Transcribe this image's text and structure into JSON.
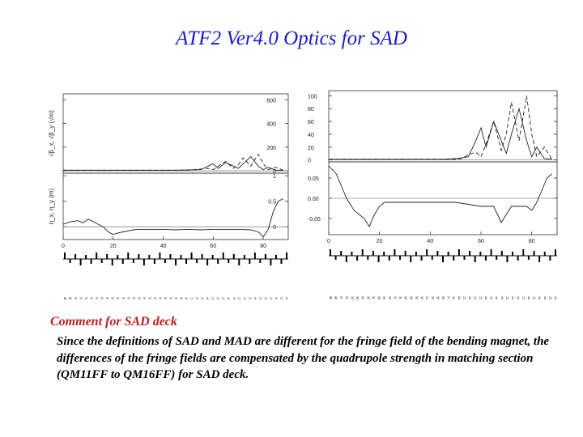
{
  "slide": {
    "title": "ATF2 Ver4.0 Optics for SAD",
    "comment_heading": "Comment for SAD deck",
    "comment_body": "Since the definitions of SAD and MAD are different for the fringe field of the bending magnet, the differences of the fringe fields are compensated by the quadrupole strength in matching section (QM11FF to QM16FF) for SAD deck."
  },
  "colors": {
    "title": "#1a1acc",
    "heading": "#c02020"
  },
  "chart_data": [
    {
      "type": "line",
      "panels": [
        {
          "ylabel": "√β_x, √β_y (√m)",
          "yticks": [
            "0",
            "200",
            "400",
            "600"
          ],
          "ylim": [
            -20,
            650
          ],
          "series": [
            {
              "x": [
                0,
                10,
                20,
                30,
                40,
                45,
                50,
                55,
                58,
                60,
                62,
                65,
                68,
                70,
                72,
                75,
                78,
                80,
                82,
                85,
                88
              ],
              "y": [
                5,
                5,
                5,
                5,
                5,
                5,
                8,
                10,
                40,
                60,
                20,
                70,
                40,
                20,
                60,
                120,
                40,
                10,
                30,
                5,
                5
              ]
            },
            {
              "x": [
                0,
                10,
                20,
                30,
                40,
                45,
                50,
                55,
                58,
                60,
                62,
                65,
                68,
                70,
                72,
                75,
                78,
                80,
                82,
                85,
                88
              ],
              "y": [
                5,
                5,
                5,
                5,
                5,
                5,
                5,
                15,
                20,
                10,
                40,
                80,
                20,
                50,
                110,
                40,
                140,
                60,
                10,
                30,
                5
              ]
            }
          ]
        },
        {
          "ylabel": "η_x, η_y (m)",
          "yticks": [
            "0",
            "0.5",
            "1"
          ],
          "ylim": [
            -0.25,
            1.05
          ],
          "series": [
            {
              "x": [
                0,
                3,
                6,
                8,
                10,
                12,
                14,
                16,
                18,
                20,
                22,
                24,
                26,
                28,
                30,
                35,
                40,
                45,
                50,
                55,
                60,
                65,
                70,
                75,
                78,
                80,
                82,
                84,
                86,
                88
              ],
              "y": [
                0.05,
                0.1,
                0.12,
                0.08,
                0.15,
                0.1,
                0.05,
                0.0,
                -0.1,
                -0.15,
                -0.12,
                -0.1,
                -0.08,
                -0.06,
                -0.05,
                -0.05,
                -0.05,
                -0.06,
                -0.05,
                -0.06,
                -0.05,
                -0.05,
                -0.05,
                -0.06,
                -0.1,
                -0.2,
                -0.05,
                0.3,
                0.5,
                0.55
              ]
            }
          ]
        }
      ],
      "xticks": [
        "0",
        "20",
        "40",
        "60",
        "80"
      ],
      "xlim": [
        0,
        90
      ],
      "element_labels": [
        "QM6R",
        "QM6R",
        "QF1X",
        "QD2X",
        "QF3X",
        "QF4X",
        "QD5X",
        "QF6X",
        "QF7X",
        "QD8X",
        "QF9X",
        "QD10X",
        "QF11X",
        "QD12X",
        "QF13X",
        "QD14X",
        "QF15X",
        "QD16X",
        "QF17X",
        "QD18X",
        "QF19X",
        "QD20X",
        "QF21X",
        "QM16FF",
        "QM15FF",
        "QM14FF",
        "QM13FF",
        "QM12FF",
        "QM11FF",
        "QD10FF",
        "QF9FF",
        "QD8FF",
        "QF7FF",
        "QD6FF",
        "QF5FF",
        "QD4FF",
        "QF3FF",
        "QD2BFF",
        "QD2AFF",
        "SF1FF",
        "QF1FF",
        "SD0FF",
        "QD0FF"
      ]
    },
    {
      "type": "line",
      "panels": [
        {
          "ylabel": "√β_x, √β_y (√m)",
          "yticks": [
            "0",
            "20",
            "40",
            "60",
            "80",
            "100"
          ],
          "ylim": [
            -3,
            108
          ],
          "series": [
            {
              "x": [
                0,
                10,
                20,
                30,
                40,
                45,
                50,
                52,
                55,
                58,
                60,
                62,
                65,
                68,
                70,
                72,
                75,
                78,
                80,
                82,
                85,
                88
              ],
              "y": [
                1,
                1,
                1,
                1,
                1,
                1,
                2,
                3,
                5,
                30,
                50,
                20,
                60,
                30,
                10,
                40,
                80,
                30,
                5,
                20,
                2,
                1
              ]
            },
            {
              "x": [
                0,
                10,
                20,
                30,
                40,
                45,
                50,
                52,
                55,
                58,
                60,
                62,
                65,
                68,
                70,
                72,
                75,
                78,
                80,
                82,
                85,
                88
              ],
              "y": [
                1,
                1,
                1,
                1,
                1,
                1,
                1,
                2,
                8,
                12,
                5,
                25,
                60,
                15,
                40,
                90,
                30,
                100,
                40,
                5,
                20,
                1
              ]
            }
          ]
        },
        {
          "ylabel": "η_x, η_y (m)",
          "yticks": [
            "-0.05",
            "0.00",
            "0.05"
          ],
          "ylim": [
            -0.09,
            0.09
          ],
          "series": [
            {
              "x": [
                0,
                3,
                5,
                7,
                10,
                12,
                14,
                15,
                16,
                18,
                20,
                22,
                25,
                30,
                40,
                50,
                60,
                65,
                68,
                70,
                72,
                75,
                78,
                80,
                82,
                84,
                86,
                88
              ],
              "y": [
                0.08,
                0.06,
                0.03,
                0.0,
                -0.03,
                -0.04,
                -0.05,
                -0.06,
                -0.07,
                -0.04,
                -0.02,
                -0.01,
                -0.01,
                -0.01,
                -0.01,
                -0.01,
                -0.02,
                -0.02,
                -0.06,
                -0.04,
                -0.02,
                -0.02,
                -0.02,
                -0.03,
                -0.01,
                0.02,
                0.05,
                0.06
              ]
            }
          ]
        }
      ],
      "xticks": [
        "0",
        "20",
        "40",
        "60",
        "80"
      ],
      "xlim": [
        0,
        90
      ],
      "element_labels": [
        "QM6R",
        "QM6R",
        "QF1X",
        "QD2X",
        "QF3X",
        "QF4X",
        "QD5X",
        "QF6X",
        "QF7X",
        "QD8X",
        "QF9X",
        "QD10X",
        "QF11X",
        "QD12X",
        "QF13X",
        "QD14X",
        "QF15X",
        "QD16X",
        "QF17X",
        "QD18X",
        "QF19X",
        "QD20X",
        "QF21X",
        "QM16FF",
        "QM15FF",
        "QM14FF",
        "QM13FF",
        "QM12FF",
        "QM11FF",
        "QD10FF",
        "QF9FF",
        "QD8FF",
        "QF7FF",
        "QD6FF",
        "QF5FF",
        "QD4FF",
        "QF3FF",
        "QD2BFF",
        "QD2AFF",
        "SF1FF",
        "QF1FF",
        "SD0FF",
        "QD0FF"
      ]
    }
  ]
}
